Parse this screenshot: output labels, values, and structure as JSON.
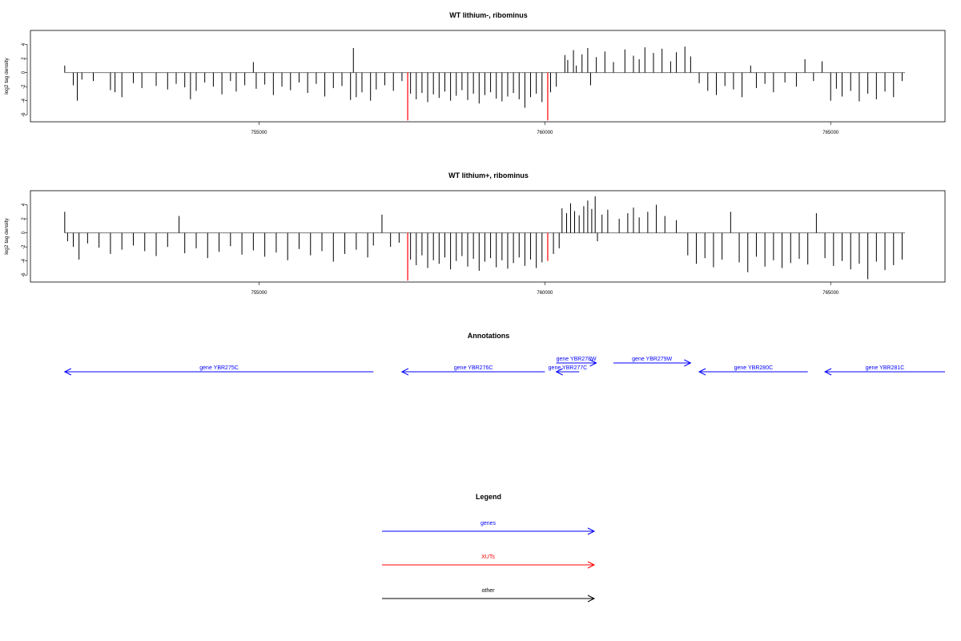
{
  "chart_data": [
    {
      "type": "bar",
      "title": "WT lithium-, ribominus",
      "ylabel": "log2 tag density",
      "xlim": [
        751000,
        767000
      ],
      "ylim": [
        -7,
        6
      ],
      "yticks": [
        -6,
        -4,
        -2,
        0,
        2,
        4
      ],
      "xticks": [
        755000,
        760000,
        765000
      ],
      "xtick_labels": [
        "755000",
        "760000",
        "765000"
      ],
      "baseline": {
        "from": 751600,
        "to": 766300,
        "value": 0
      },
      "highlight_color": "#ff0000",
      "highlights": [
        {
          "x": 757600,
          "y": -6.8
        },
        {
          "x": 760050,
          "y": -6.8
        }
      ],
      "series": [
        {
          "values": [
            [
              751600,
              1.0
            ],
            [
              751750,
              -1.8
            ],
            [
              751820,
              -4.0
            ],
            [
              751900,
              -1.0
            ],
            [
              752100,
              -1.2
            ],
            [
              752400,
              -2.5
            ],
            [
              752480,
              -2.8
            ],
            [
              752600,
              -3.5
            ],
            [
              752800,
              -1.5
            ],
            [
              752950,
              -2.2
            ],
            [
              753200,
              -1.9
            ],
            [
              753400,
              -2.4
            ],
            [
              753550,
              -1.6
            ],
            [
              753700,
              -2.1
            ],
            [
              753800,
              -3.8
            ],
            [
              753900,
              -2.6
            ],
            [
              754050,
              -1.4
            ],
            [
              754200,
              -2.0
            ],
            [
              754350,
              -3.1
            ],
            [
              754500,
              -1.2
            ],
            [
              754600,
              -2.7
            ],
            [
              754750,
              -1.8
            ],
            [
              754900,
              1.5
            ],
            [
              754950,
              -2.3
            ],
            [
              755100,
              -1.7
            ],
            [
              755250,
              -3.2
            ],
            [
              755400,
              -2.0
            ],
            [
              755550,
              -2.5
            ],
            [
              755700,
              -1.4
            ],
            [
              755850,
              -2.9
            ],
            [
              756000,
              -1.6
            ],
            [
              756150,
              -3.4
            ],
            [
              756300,
              -2.2
            ],
            [
              756450,
              -1.9
            ],
            [
              756600,
              -3.9
            ],
            [
              756650,
              3.5
            ],
            [
              756700,
              -3.5
            ],
            [
              756800,
              -2.8
            ],
            [
              756950,
              -4.0
            ],
            [
              757050,
              -2.4
            ],
            [
              757200,
              -1.8
            ],
            [
              757350,
              -2.6
            ],
            [
              757500,
              -1.2
            ],
            [
              757650,
              -3.0
            ],
            [
              757750,
              -3.8
            ],
            [
              757850,
              -2.9
            ],
            [
              757950,
              -4.2
            ],
            [
              758050,
              -3.1
            ],
            [
              758150,
              -3.6
            ],
            [
              758250,
              -2.7
            ],
            [
              758350,
              -4.0
            ],
            [
              758450,
              -3.3
            ],
            [
              758550,
              -2.5
            ],
            [
              758650,
              -3.9
            ],
            [
              758750,
              -3.0
            ],
            [
              758850,
              -4.4
            ],
            [
              758950,
              -3.2
            ],
            [
              759050,
              -2.8
            ],
            [
              759150,
              -3.7
            ],
            [
              759250,
              -4.1
            ],
            [
              759350,
              -3.4
            ],
            [
              759450,
              -2.9
            ],
            [
              759550,
              -3.8
            ],
            [
              759650,
              -5.0
            ],
            [
              759750,
              -3.5
            ],
            [
              759850,
              -3.0
            ],
            [
              759950,
              -4.2
            ],
            [
              760100,
              -2.8
            ],
            [
              760200,
              -2.0
            ],
            [
              760350,
              2.5
            ],
            [
              760400,
              1.8
            ],
            [
              760500,
              3.2
            ],
            [
              760550,
              1.0
            ],
            [
              760650,
              2.6
            ],
            [
              760750,
              3.5
            ],
            [
              760800,
              -1.8
            ],
            [
              760900,
              2.2
            ],
            [
              761050,
              3.0
            ],
            [
              761200,
              1.5
            ],
            [
              761400,
              3.3
            ],
            [
              761550,
              2.4
            ],
            [
              761650,
              1.9
            ],
            [
              761750,
              3.6
            ],
            [
              761900,
              2.8
            ],
            [
              762050,
              3.4
            ],
            [
              762200,
              1.6
            ],
            [
              762300,
              2.9
            ],
            [
              762450,
              3.7
            ],
            [
              762550,
              2.3
            ],
            [
              762700,
              -1.5
            ],
            [
              762850,
              -2.6
            ],
            [
              763000,
              -3.2
            ],
            [
              763150,
              -1.9
            ],
            [
              763300,
              -2.4
            ],
            [
              763450,
              -3.5
            ],
            [
              763600,
              1.0
            ],
            [
              763700,
              -2.2
            ],
            [
              763850,
              -1.6
            ],
            [
              764000,
              -2.8
            ],
            [
              764200,
              -1.4
            ],
            [
              764400,
              -2.0
            ],
            [
              764550,
              1.9
            ],
            [
              764700,
              -1.2
            ],
            [
              764850,
              1.6
            ],
            [
              765000,
              -4.0
            ],
            [
              765100,
              -2.3
            ],
            [
              765200,
              -3.4
            ],
            [
              765350,
              -2.6
            ],
            [
              765500,
              -4.1
            ],
            [
              765650,
              -3.0
            ],
            [
              765800,
              -3.8
            ],
            [
              765950,
              -2.7
            ],
            [
              766100,
              -3.5
            ],
            [
              766250,
              -1.2
            ]
          ]
        }
      ]
    },
    {
      "type": "bar",
      "title": "WT lithium+, ribominus",
      "ylabel": "log2 tag density",
      "xlim": [
        751000,
        767000
      ],
      "ylim": [
        -7,
        6
      ],
      "yticks": [
        -6,
        -4,
        -2,
        0,
        2,
        4
      ],
      "xticks": [
        755000,
        760000,
        765000
      ],
      "xtick_labels": [
        "755000",
        "760000",
        "765000"
      ],
      "baseline": {
        "from": 751600,
        "to": 766300,
        "value": 0
      },
      "highlight_color": "#ff0000",
      "highlights": [
        {
          "x": 757600,
          "y": -6.8
        },
        {
          "x": 760050,
          "y": -4.0
        }
      ],
      "series": [
        {
          "values": [
            [
              751600,
              3.0
            ],
            [
              751650,
              -1.2
            ],
            [
              751750,
              -2.0
            ],
            [
              751850,
              -3.8
            ],
            [
              752000,
              -1.5
            ],
            [
              752200,
              -2.1
            ],
            [
              752400,
              -3.0
            ],
            [
              752600,
              -2.4
            ],
            [
              752800,
              -1.8
            ],
            [
              753000,
              -2.6
            ],
            [
              753200,
              -3.3
            ],
            [
              753400,
              -2.0
            ],
            [
              753600,
              2.4
            ],
            [
              753700,
              -2.9
            ],
            [
              753900,
              -2.2
            ],
            [
              754100,
              -3.6
            ],
            [
              754300,
              -2.7
            ],
            [
              754500,
              -1.9
            ],
            [
              754700,
              -3.1
            ],
            [
              754900,
              -2.5
            ],
            [
              755100,
              -3.4
            ],
            [
              755300,
              -2.8
            ],
            [
              755500,
              -3.9
            ],
            [
              755700,
              -2.3
            ],
            [
              755900,
              -3.2
            ],
            [
              756100,
              -2.6
            ],
            [
              756300,
              -4.1
            ],
            [
              756500,
              -3.0
            ],
            [
              756700,
              -2.4
            ],
            [
              756900,
              -3.5
            ],
            [
              757000,
              -1.8
            ],
            [
              757150,
              2.6
            ],
            [
              757300,
              -2.0
            ],
            [
              757450,
              -1.4
            ],
            [
              757650,
              -3.8
            ],
            [
              757750,
              -4.6
            ],
            [
              757850,
              -3.2
            ],
            [
              757950,
              -5.0
            ],
            [
              758050,
              -3.9
            ],
            [
              758150,
              -4.4
            ],
            [
              758250,
              -3.5
            ],
            [
              758350,
              -5.2
            ],
            [
              758450,
              -4.0
            ],
            [
              758550,
              -3.3
            ],
            [
              758650,
              -4.8
            ],
            [
              758750,
              -3.7
            ],
            [
              758850,
              -5.4
            ],
            [
              758950,
              -4.1
            ],
            [
              759050,
              -3.6
            ],
            [
              759150,
              -4.9
            ],
            [
              759250,
              -3.9
            ],
            [
              759350,
              -5.1
            ],
            [
              759450,
              -4.3
            ],
            [
              759550,
              -3.5
            ],
            [
              759650,
              -4.7
            ],
            [
              759750,
              -3.8
            ],
            [
              759850,
              -5.0
            ],
            [
              759950,
              -4.2
            ],
            [
              760150,
              -3.0
            ],
            [
              760250,
              -2.2
            ],
            [
              760300,
              3.5
            ],
            [
              760380,
              2.8
            ],
            [
              760450,
              4.2
            ],
            [
              760520,
              3.1
            ],
            [
              760600,
              2.5
            ],
            [
              760680,
              3.8
            ],
            [
              760750,
              4.6
            ],
            [
              760820,
              3.4
            ],
            [
              760880,
              5.2
            ],
            [
              760920,
              -1.2
            ],
            [
              761000,
              2.6
            ],
            [
              761100,
              3.3
            ],
            [
              761300,
              2.0
            ],
            [
              761450,
              2.8
            ],
            [
              761550,
              3.6
            ],
            [
              761650,
              2.2
            ],
            [
              761800,
              3.0
            ],
            [
              761950,
              4.0
            ],
            [
              762100,
              2.4
            ],
            [
              762300,
              1.8
            ],
            [
              762500,
              -3.2
            ],
            [
              762650,
              -4.4
            ],
            [
              762800,
              -3.6
            ],
            [
              762950,
              -4.9
            ],
            [
              763100,
              -3.8
            ],
            [
              763250,
              3.0
            ],
            [
              763400,
              -4.2
            ],
            [
              763550,
              -5.6
            ],
            [
              763700,
              -3.4
            ],
            [
              763850,
              -4.8
            ],
            [
              764000,
              -3.9
            ],
            [
              764150,
              -5.0
            ],
            [
              764300,
              -4.3
            ],
            [
              764450,
              -3.7
            ],
            [
              764600,
              -4.5
            ],
            [
              764750,
              2.8
            ],
            [
              764900,
              -3.6
            ],
            [
              765050,
              -4.7
            ],
            [
              765200,
              -4.0
            ],
            [
              765350,
              -5.2
            ],
            [
              765500,
              -4.4
            ],
            [
              765650,
              -6.6
            ],
            [
              765800,
              -4.1
            ],
            [
              765950,
              -5.3
            ],
            [
              766100,
              -4.6
            ],
            [
              766250,
              -3.8
            ]
          ]
        }
      ]
    }
  ],
  "annotations": {
    "title": "Annotations",
    "color": "#0000ff",
    "genes": [
      {
        "label": "gene YBR275C",
        "start": 751600,
        "end": 757000,
        "direction": "left"
      },
      {
        "label": "gene YBR276C",
        "start": 757500,
        "end": 760000,
        "direction": "left"
      },
      {
        "label": "gene YBR277C",
        "start": 760200,
        "end": 760600,
        "direction": "left"
      },
      {
        "label": "gene YBR278W",
        "start": 760200,
        "end": 760900,
        "direction": "right"
      },
      {
        "label": "gene YBR279W",
        "start": 761200,
        "end": 762550,
        "direction": "right"
      },
      {
        "label": "gene YBR280C",
        "start": 762700,
        "end": 764600,
        "direction": "left"
      },
      {
        "label": "gene YBR281C",
        "start": 764900,
        "end": 767000,
        "direction": "left"
      }
    ]
  },
  "legend": {
    "title": "Legend",
    "entries": [
      {
        "label": "genes",
        "color": "#0000ff"
      },
      {
        "label": "XUTs",
        "color": "#ff0000"
      },
      {
        "label": "other",
        "color": "#000000"
      }
    ]
  }
}
